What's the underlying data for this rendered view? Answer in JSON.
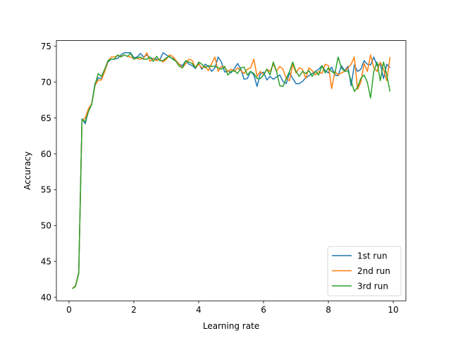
{
  "chart_data": {
    "type": "line",
    "title": "",
    "xlabel": "Learning rate",
    "ylabel": "Accuracy",
    "xlim": [
      -0.39,
      10.39
    ],
    "ylim": [
      39.5,
      75.8
    ],
    "xticks": [
      0,
      2,
      4,
      6,
      8,
      10
    ],
    "yticks": [
      40,
      45,
      50,
      55,
      60,
      65,
      70,
      75
    ],
    "grid": false,
    "legend": "lower-right",
    "series": [
      {
        "name": "1st run",
        "color": "#1f77b4",
        "x": [
          0.1,
          0.2,
          0.3,
          0.4,
          0.5,
          0.6,
          0.7,
          0.8,
          0.9,
          1.0,
          1.1,
          1.2,
          1.3,
          1.4,
          1.5,
          1.6,
          1.7,
          1.8,
          1.9,
          2.0,
          2.1,
          2.2,
          2.3,
          2.4,
          2.5,
          2.6,
          2.7,
          2.8,
          2.9,
          3.0,
          3.1,
          3.2,
          3.3,
          3.4,
          3.5,
          3.6,
          3.7,
          3.8,
          3.9,
          4.0,
          4.1,
          4.2,
          4.3,
          4.4,
          4.5,
          4.6,
          4.7,
          4.8,
          4.9,
          5.0,
          5.1,
          5.2,
          5.3,
          5.4,
          5.5,
          5.6,
          5.7,
          5.8,
          5.9,
          6.0,
          6.1,
          6.2,
          6.3,
          6.4,
          6.5,
          6.6,
          6.7,
          6.8,
          6.9,
          7.0,
          7.1,
          7.2,
          7.3,
          7.4,
          7.5,
          7.6,
          7.7,
          7.8,
          7.9,
          8.0,
          8.1,
          8.2,
          8.3,
          8.4,
          8.5,
          8.6,
          8.7,
          8.8,
          8.9,
          9.0,
          9.1,
          9.2,
          9.3,
          9.4,
          9.5,
          9.6,
          9.7,
          9.8,
          9.9
        ],
        "y": [
          41.2,
          41.6,
          43.5,
          64.9,
          64.2,
          66.0,
          67.0,
          69.8,
          70.6,
          70.5,
          71.5,
          72.8,
          73.2,
          73.2,
          73.3,
          73.8,
          74.1,
          74.1,
          74.1,
          73.4,
          73.5,
          74.0,
          73.5,
          73.8,
          73.4,
          73.3,
          73.2,
          73.1,
          74.1,
          73.8,
          73.5,
          73.3,
          73.0,
          72.5,
          72.3,
          73.0,
          72.5,
          72.3,
          71.9,
          72.6,
          71.8,
          72.5,
          72.2,
          71.5,
          72.0,
          73.5,
          72.8,
          71.4,
          71.6,
          71.3,
          71.9,
          72.6,
          71.8,
          70.4,
          70.5,
          71.5,
          71.0,
          69.4,
          71.2,
          71.4,
          70.3,
          70.8,
          70.4,
          70.7,
          71.0,
          70.1,
          69.8,
          71.3,
          70.5,
          69.8,
          69.8,
          70.1,
          70.6,
          70.9,
          71.2,
          71.5,
          71.8,
          72.3,
          71.6,
          71.3,
          72.1,
          71.0,
          70.9,
          72.3,
          71.6,
          72.2,
          69.5,
          72.4,
          71.5,
          71.8,
          73.0,
          72.5,
          72.4,
          73.5,
          72.3,
          72.6,
          70.5,
          72.5,
          72.0
        ]
      },
      {
        "name": "2nd run",
        "color": "#ff7f0e",
        "x": [
          0.1,
          0.2,
          0.3,
          0.4,
          0.5,
          0.6,
          0.7,
          0.8,
          0.9,
          1.0,
          1.1,
          1.2,
          1.3,
          1.4,
          1.5,
          1.6,
          1.7,
          1.8,
          1.9,
          2.0,
          2.1,
          2.2,
          2.3,
          2.4,
          2.5,
          2.6,
          2.7,
          2.8,
          2.9,
          3.0,
          3.1,
          3.2,
          3.3,
          3.4,
          3.5,
          3.6,
          3.7,
          3.8,
          3.9,
          4.0,
          4.1,
          4.2,
          4.3,
          4.4,
          4.5,
          4.6,
          4.7,
          4.8,
          4.9,
          5.0,
          5.1,
          5.2,
          5.3,
          5.4,
          5.5,
          5.6,
          5.7,
          5.8,
          5.9,
          6.0,
          6.1,
          6.2,
          6.3,
          6.4,
          6.5,
          6.6,
          6.7,
          6.8,
          6.9,
          7.0,
          7.1,
          7.2,
          7.3,
          7.4,
          7.5,
          7.6,
          7.7,
          7.8,
          7.9,
          8.0,
          8.1,
          8.2,
          8.3,
          8.4,
          8.5,
          8.6,
          8.7,
          8.8,
          8.9,
          9.0,
          9.1,
          9.2,
          9.3,
          9.4,
          9.5,
          9.6,
          9.7,
          9.8,
          9.9
        ],
        "y": [
          41.2,
          41.6,
          43.4,
          64.6,
          65.0,
          66.3,
          67.0,
          69.5,
          70.3,
          70.3,
          71.5,
          72.9,
          73.5,
          73.5,
          73.7,
          73.6,
          73.8,
          73.6,
          73.5,
          73.3,
          73.3,
          73.2,
          73.3,
          74.1,
          72.9,
          73.3,
          73.0,
          73.2,
          72.8,
          73.2,
          73.8,
          73.6,
          73.0,
          72.5,
          72.0,
          72.6,
          73.2,
          73.0,
          72.0,
          72.5,
          72.0,
          72.2,
          71.6,
          72.6,
          73.5,
          71.5,
          72.2,
          72.0,
          71.5,
          71.8,
          71.5,
          72.0,
          71.6,
          71.2,
          71.8,
          72.0,
          73.2,
          70.8,
          71.5,
          71.0,
          71.8,
          71.5,
          72.5,
          71.5,
          72.2,
          71.8,
          70.5,
          70.2,
          72.5,
          71.3,
          72.0,
          71.8,
          70.5,
          72.0,
          71.6,
          71.0,
          71.5,
          71.2,
          72.5,
          72.3,
          69.1,
          71.5,
          71.0,
          71.3,
          71.5,
          72.0,
          72.5,
          73.5,
          69.0,
          70.0,
          72.6,
          71.5,
          73.8,
          72.0,
          71.5,
          72.8,
          71.8,
          70.2,
          73.5
        ]
      },
      {
        "name": "3rd run",
        "color": "#2ca02c",
        "x": [
          0.1,
          0.2,
          0.3,
          0.4,
          0.5,
          0.6,
          0.7,
          0.8,
          0.9,
          1.0,
          1.1,
          1.2,
          1.3,
          1.4,
          1.5,
          1.6,
          1.7,
          1.8,
          1.9,
          2.0,
          2.1,
          2.2,
          2.3,
          2.4,
          2.5,
          2.6,
          2.7,
          2.8,
          2.9,
          3.0,
          3.1,
          3.2,
          3.3,
          3.4,
          3.5,
          3.6,
          3.7,
          3.8,
          3.9,
          4.0,
          4.1,
          4.2,
          4.3,
          4.4,
          4.5,
          4.6,
          4.7,
          4.8,
          4.9,
          5.0,
          5.1,
          5.2,
          5.3,
          5.4,
          5.5,
          5.6,
          5.7,
          5.8,
          5.9,
          6.0,
          6.1,
          6.2,
          6.3,
          6.4,
          6.5,
          6.6,
          6.7,
          6.8,
          6.9,
          7.0,
          7.1,
          7.2,
          7.3,
          7.4,
          7.5,
          7.6,
          7.7,
          7.8,
          7.9,
          8.0,
          8.1,
          8.2,
          8.3,
          8.4,
          8.5,
          8.6,
          8.7,
          8.8,
          8.9,
          9.0,
          9.1,
          9.2,
          9.3,
          9.4,
          9.5,
          9.6,
          9.7,
          9.8,
          9.9
        ],
        "y": [
          41.2,
          41.5,
          43.3,
          64.8,
          64.5,
          65.9,
          66.9,
          69.6,
          71.2,
          70.8,
          71.8,
          73.0,
          73.2,
          73.2,
          73.8,
          73.5,
          73.8,
          73.6,
          74.0,
          73.2,
          73.4,
          73.5,
          73.2,
          73.2,
          73.5,
          72.9,
          73.6,
          73.0,
          73.0,
          73.4,
          73.6,
          73.2,
          72.9,
          72.2,
          72.0,
          73.0,
          72.8,
          72.6,
          72.0,
          72.8,
          72.5,
          72.0,
          72.3,
          72.2,
          72.2,
          72.0,
          71.8,
          72.2,
          71.0,
          71.5,
          71.6,
          71.2,
          72.0,
          72.1,
          71.0,
          71.5,
          71.2,
          70.5,
          70.5,
          71.0,
          71.8,
          71.0,
          72.8,
          71.5,
          69.5,
          69.4,
          70.5,
          71.5,
          72.8,
          71.5,
          70.8,
          71.5,
          71.2,
          71.6,
          70.8,
          71.5,
          71.0,
          72.3,
          71.3,
          72.0,
          71.5,
          71.2,
          73.5,
          72.0,
          71.5,
          71.6,
          70.2,
          68.7,
          69.3,
          70.5,
          71.0,
          70.0,
          67.8,
          71.5,
          72.8,
          70.2,
          72.8,
          71.0,
          68.7
        ]
      }
    ]
  }
}
